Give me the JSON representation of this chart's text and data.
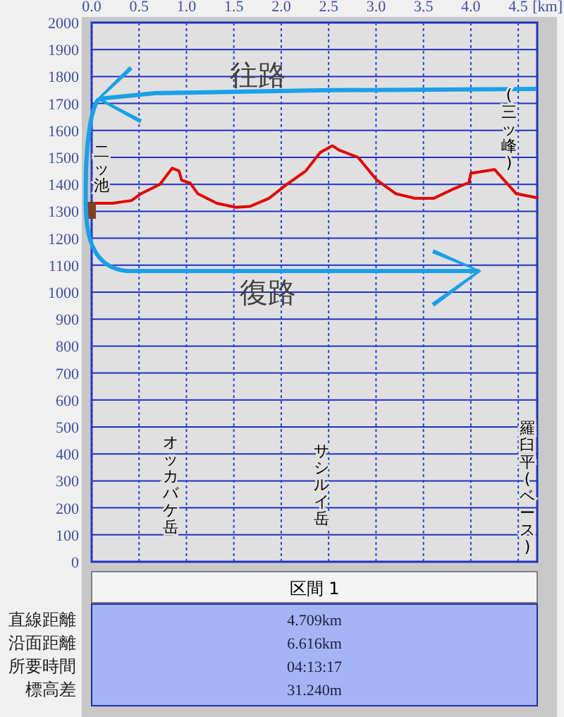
{
  "chart_data": {
    "type": "line",
    "xlabel": "[km]",
    "x": [
      0,
      0.22,
      0.42,
      0.52,
      0.72,
      0.85,
      0.92,
      0.95,
      1.04,
      1.12,
      1.32,
      1.52,
      1.67,
      1.87,
      2.06,
      2.26,
      2.41,
      2.54,
      2.61,
      2.81,
      3.01,
      3.21,
      3.41,
      3.61,
      3.81,
      3.98,
      4.0,
      4.25,
      4.48,
      4.7
    ],
    "series": [
      {
        "color": "#e00000",
        "values": [
          1330,
          1330,
          1340,
          1365,
          1400,
          1460,
          1450,
          1415,
          1405,
          1365,
          1330,
          1315,
          1318,
          1348,
          1400,
          1450,
          1518,
          1543,
          1527,
          1500,
          1415,
          1365,
          1348,
          1348,
          1382,
          1407,
          1441,
          1455,
          1365,
          1350
        ]
      }
    ],
    "xlim": [
      0,
      4.7
    ],
    "ylim": [
      0,
      2000
    ],
    "xticks": [
      {
        "value": 0,
        "label": "0.0"
      },
      0.5,
      {
        "value": 1,
        "label": "1.0"
      },
      1.5,
      {
        "value": 2,
        "label": "2.0"
      },
      2.5,
      {
        "value": 3,
        "label": "3.0"
      },
      3.5,
      {
        "value": 4,
        "label": "4.0"
      },
      4.5
    ],
    "yticks": [
      0,
      100,
      200,
      300,
      400,
      500,
      600,
      700,
      800,
      900,
      1000,
      1100,
      1200,
      1300,
      1400,
      1500,
      1600,
      1700,
      1800,
      1900,
      2000
    ],
    "grid": true,
    "line_style": "solid",
    "marker": "none",
    "annotations": [
      "往路",
      "復路",
      "二ッ池",
      "オッカバケ岳",
      "サシルイ岳",
      "(三ッ峰)",
      "羅臼平(ベース)",
      "区間 1",
      "直線距離",
      "4.709km",
      "沿面距離",
      "6.616km",
      "所要時間",
      "04:13:17",
      "標高差",
      "31.240m"
    ]
  }
}
